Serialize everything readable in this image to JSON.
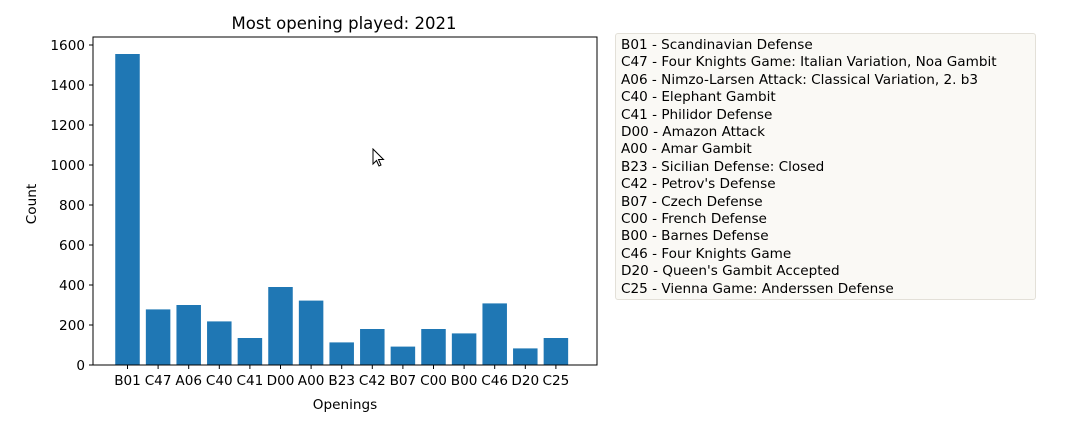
{
  "chart_data": {
    "type": "bar",
    "title": "Most opening played: 2021",
    "xlabel": "Openings",
    "ylabel": "Count",
    "ylim": [
      0,
      1640
    ],
    "yticks": [
      0,
      200,
      400,
      600,
      800,
      1000,
      1200,
      1400,
      1600
    ],
    "categories": [
      "B01",
      "C47",
      "A06",
      "C40",
      "C41",
      "D00",
      "A00",
      "B23",
      "C42",
      "B07",
      "C00",
      "B00",
      "C46",
      "D20",
      "C25"
    ],
    "values": [
      1555,
      278,
      300,
      218,
      135,
      390,
      322,
      113,
      180,
      92,
      180,
      158,
      308,
      83,
      135
    ],
    "bar_color": "#1f77b4",
    "grid": false,
    "legend_placement": "right, outside plot",
    "legend": [
      "B01 - Scandinavian Defense",
      "C47 - Four Knights Game: Italian Variation, Noa Gambit",
      "A06 - Nimzo-Larsen Attack: Classical Variation, 2. b3",
      "C40 - Elephant Gambit",
      "C41 - Philidor Defense",
      "D00 - Amazon Attack",
      "A00 - Amar Gambit",
      "B23 - Sicilian Defense: Closed",
      "C42 - Petrov's Defense",
      "B07 - Czech Defense",
      "C00 - French Defense",
      "B00 - Barnes Defense",
      "C46 - Four Knights Game",
      "D20 - Queen's Gambit Accepted",
      "C25 - Vienna Game: Anderssen Defense"
    ]
  },
  "cursor_icon": "arrow-cursor-icon"
}
